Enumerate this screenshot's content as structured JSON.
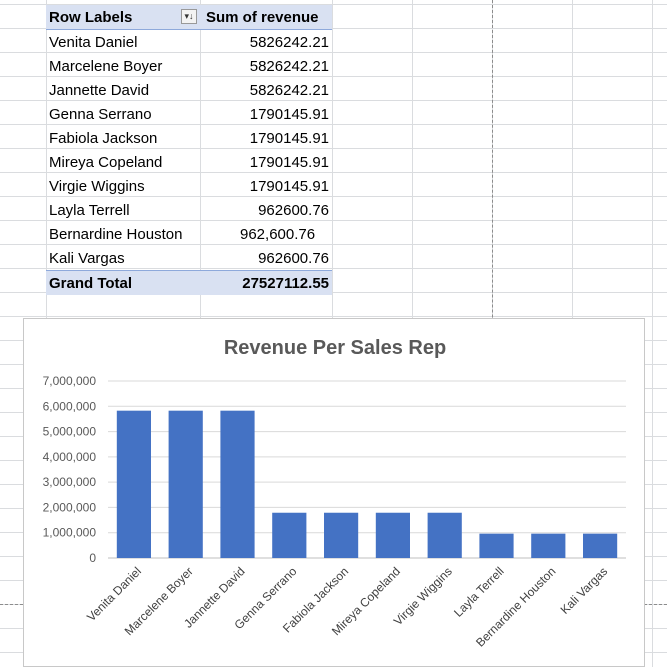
{
  "pivot": {
    "header": {
      "row_labels": "Row Labels",
      "sum_of_revenue": "Sum of revenue",
      "filter_icon": "sort-filter-icon"
    },
    "rows": [
      {
        "name": "Venita Daniel",
        "value": "5826242.21"
      },
      {
        "name": "Marcelene Boyer",
        "value": "5826242.21"
      },
      {
        "name": "Jannette David",
        "value": "5826242.21"
      },
      {
        "name": "Genna Serrano",
        "value": "1790145.91"
      },
      {
        "name": "Fabiola Jackson",
        "value": "1790145.91"
      },
      {
        "name": "Mireya Copeland",
        "value": "1790145.91"
      },
      {
        "name": "Virgie Wiggins",
        "value": "1790145.91"
      },
      {
        "name": "Layla Terrell",
        "value": "962600.76"
      },
      {
        "name": "Bernardine Houston",
        "value": "962,600.76"
      },
      {
        "name": "Kali Vargas",
        "value": "962600.76"
      }
    ],
    "grand_total": {
      "label": "Grand Total",
      "value": "27527112.55"
    }
  },
  "chart_data": {
    "type": "bar",
    "title": "Revenue Per Sales Rep",
    "categories": [
      "Venita Daniel",
      "Marcelene Boyer",
      "Jannette David",
      "Genna Serrano",
      "Fabiola Jackson",
      "Mireya Copeland",
      "Virgie Wiggins",
      "Layla Terrell",
      "Bernardine Houston",
      "Kali Vargas"
    ],
    "values": [
      5826242.21,
      5826242.21,
      5826242.21,
      1790145.91,
      1790145.91,
      1790145.91,
      1790145.91,
      962600.76,
      962600.76,
      962600.76
    ],
    "ylim": [
      0,
      7000000
    ],
    "yticks": [
      "0",
      "1,000,000",
      "2,000,000",
      "3,000,000",
      "4,000,000",
      "5,000,000",
      "6,000,000",
      "7,000,000"
    ],
    "grid": true,
    "bar_color": "#4472c4"
  },
  "colors": {
    "pivot_header_fill": "#d9e1f2",
    "gridline": "#dadcdf",
    "chart_title": "#595959"
  }
}
